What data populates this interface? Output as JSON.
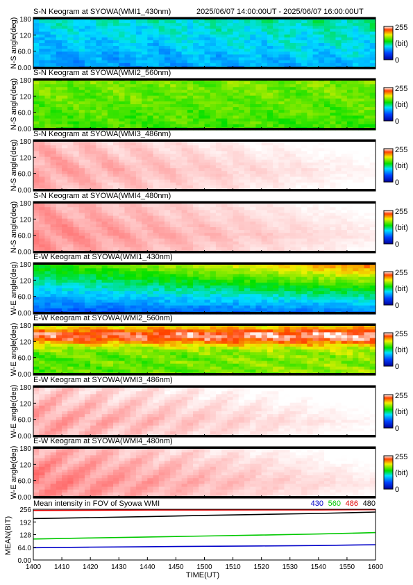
{
  "header": {
    "time_range": "2025/06/07 14:00:00UT - 2025/06/07 16:00:00UT"
  },
  "colorbar": {
    "max_label": "255",
    "unit_label": "(bit)",
    "min_label": "0"
  },
  "panels": [
    {
      "title": "S-N Keogram at SYOWA(WMI1_430nm)",
      "ylabel": "N-S angle(deg)",
      "yticks": [
        "180",
        "120",
        "60.0",
        "0.00"
      ],
      "colormap": "rainbow"
    },
    {
      "title": "S-N Keogram at SYOWA(WMI2_560nm)",
      "ylabel": "N-S angle(deg)",
      "yticks": [
        "180",
        "120",
        "60.0",
        "0.00"
      ],
      "colormap": "rainbow"
    },
    {
      "title": "S-N Keogram at SYOWA(WMI3_486nm)",
      "ylabel": "N-S angle(deg)",
      "yticks": [
        "180",
        "120",
        "60.0",
        "0.00"
      ],
      "colormap": "rainbow"
    },
    {
      "title": "S-N Keogram at SYOWA(WMI4_480nm)",
      "ylabel": "N-S angle(deg)",
      "yticks": [
        "180",
        "120",
        "60.0",
        "0.00"
      ],
      "colormap": "rainbow"
    },
    {
      "title": "E-W Keogram at SYOWA(WMI1_430nm)",
      "ylabel": "W-E angle(deg)",
      "yticks": [
        "180",
        "120",
        "60.0",
        "0.00"
      ],
      "colormap": "rainbow"
    },
    {
      "title": "E-W Keogram at SYOWA(WMI2_560nm)",
      "ylabel": "W-E angle(deg)",
      "yticks": [
        "180",
        "120",
        "60.0",
        "0.00"
      ],
      "colormap": "rainbow"
    },
    {
      "title": "E-W Keogram at SYOWA(WMI3_486nm)",
      "ylabel": "W-E angle(deg)",
      "yticks": [
        "180",
        "120",
        "60.0",
        "0.00"
      ],
      "colormap": "rainbow"
    },
    {
      "title": "E-W Keogram at SYOWA(WMI4_480nm)",
      "ylabel": "W-E angle(deg)",
      "yticks": [
        "180",
        "120",
        "60.0",
        "0.00"
      ],
      "colormap": "rainbow"
    }
  ],
  "chart_data": {
    "type": "line",
    "title": "Mean intensity in FOV of Syowa WMI",
    "xlabel": "TIME(UT)",
    "ylabel": "MEAN(BIT)",
    "x_ticks": [
      "1400",
      "1410",
      "1420",
      "1430",
      "1440",
      "1450",
      "1500",
      "1510",
      "1520",
      "1530",
      "1540",
      "1550",
      "1600"
    ],
    "y_ticks": [
      "256",
      "192",
      "128",
      "64.0",
      "0.00"
    ],
    "ylim": [
      0,
      256
    ],
    "x": [
      1400,
      1420,
      1440,
      1500,
      1520,
      1540,
      1600
    ],
    "series": [
      {
        "name": "430",
        "color": "#0000c8",
        "values": [
          62,
          65,
          67,
          69,
          71,
          73,
          77
        ]
      },
      {
        "name": "560",
        "color": "#00c800",
        "values": [
          106,
          111,
          116,
          121,
          126,
          131,
          138
        ]
      },
      {
        "name": "486",
        "color": "#e00000",
        "values": [
          250,
          251,
          252,
          252,
          253,
          253,
          254
        ]
      },
      {
        "name": "480",
        "color": "#000000",
        "values": [
          209,
          214,
          219,
          225,
          230,
          235,
          242
        ]
      }
    ]
  }
}
